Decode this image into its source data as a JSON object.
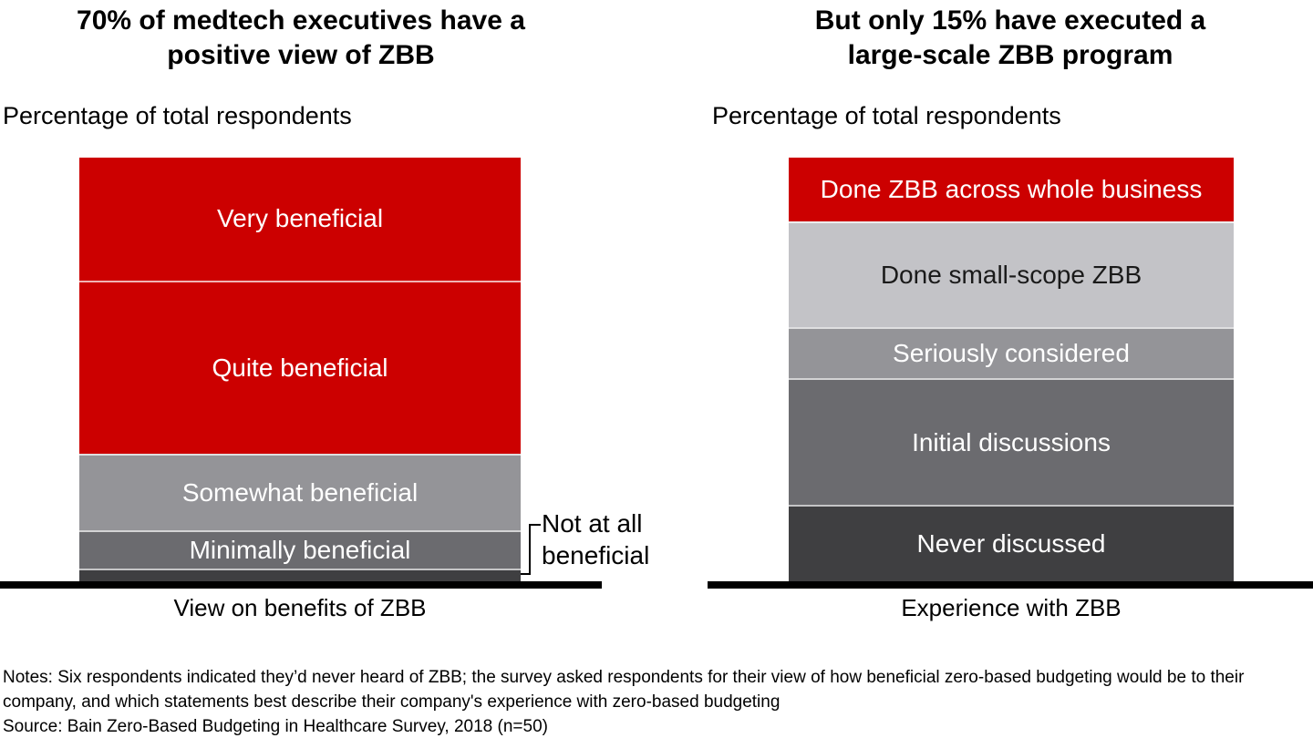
{
  "page": {
    "background": "#ffffff",
    "accent_red": "#cc0000"
  },
  "chart_data": [
    {
      "type": "stacked-bar",
      "title_lines": [
        "70% of medtech executives have a",
        "positive view of ZBB"
      ],
      "subtitle": "Percentage of total respondents",
      "xlabel": "View on benefits of ZBB",
      "unit": "percent of total respondents",
      "ylim": [
        0,
        100
      ],
      "grid": false,
      "legend": "labels-inside-segments",
      "segments": [
        {
          "label": "Very beneficial",
          "value": 29,
          "color": "#cc0000",
          "text_color": "#ffffff"
        },
        {
          "label": "Quite beneficial",
          "value": 41,
          "color": "#cc0000",
          "text_color": "#ffffff"
        },
        {
          "label": "Somewhat beneficial",
          "value": 18,
          "color": "#949498",
          "text_color": "#ffffff"
        },
        {
          "label": "Minimally beneficial",
          "value": 9,
          "color": "#6b6b6f",
          "text_color": "#ffffff"
        },
        {
          "label": "Not at all beneficial",
          "value": 3,
          "color": "#3f3f41",
          "text_color": "#ffffff",
          "label_outside": true
        }
      ],
      "callout": {
        "lines": [
          "Not at all",
          "beneficial"
        ],
        "target_segment": "Not at all beneficial"
      }
    },
    {
      "type": "stacked-bar",
      "title_lines": [
        "But only 15% have executed a",
        "large-scale ZBB program"
      ],
      "subtitle": "Percentage of total respondents",
      "xlabel": "Experience with ZBB",
      "unit": "percent of total respondents",
      "ylim": [
        0,
        100
      ],
      "grid": false,
      "legend": "labels-inside-segments",
      "segments": [
        {
          "label": "Done ZBB across whole business",
          "value": 15,
          "color": "#cc0000",
          "text_color": "#ffffff"
        },
        {
          "label": "Done small-scope ZBB",
          "value": 25,
          "color": "#c3c3c7",
          "text_color": "#1a1a1a"
        },
        {
          "label": "Seriously considered",
          "value": 12,
          "color": "#949498",
          "text_color": "#ffffff"
        },
        {
          "label": "Initial discussions",
          "value": 30,
          "color": "#6b6b6f",
          "text_color": "#ffffff"
        },
        {
          "label": "Never discussed",
          "value": 18,
          "color": "#3f3f41",
          "text_color": "#ffffff"
        }
      ]
    }
  ],
  "notes": {
    "line1": "Notes: Six respondents indicated they’d never heard of ZBB; the survey asked respondents for their view of how beneficial zero-based budgeting would be to their",
    "line2": "company, and which statements best describe their company's experience with zero-based budgeting",
    "source": "Source: Bain Zero-Based Budgeting in Healthcare Survey, 2018 (n=50)"
  }
}
